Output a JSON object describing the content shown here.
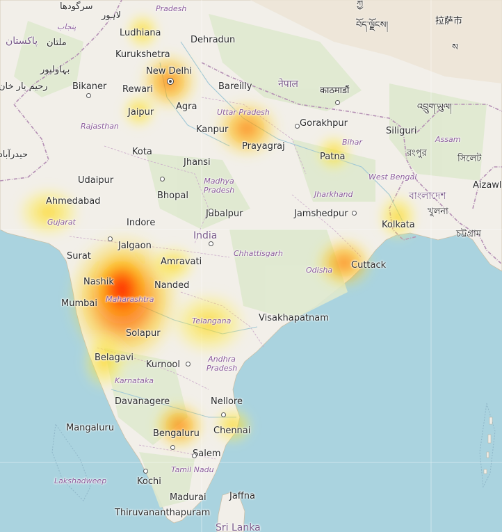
{
  "map": {
    "colors": {
      "sea": "#aad3df",
      "land": "#f2efe9",
      "terrain": "#d8e6c4",
      "border": "#b48fb4",
      "heat_high": "#ff2a00",
      "heat_mid": "#ff9a00",
      "heat_low": "#fff25c"
    },
    "countries": [
      {
        "id": "india",
        "label": "India"
      },
      {
        "id": "pakistan",
        "label": "پاکستان"
      },
      {
        "id": "nepal",
        "label": "नेपाल"
      },
      {
        "id": "bangladesh",
        "label": "বাংলাদেশ"
      },
      {
        "id": "srilanka",
        "label": "Sri Lanka"
      }
    ],
    "regions": [
      {
        "id": "uttar-pradesh",
        "label": "Uttar Pradesh"
      },
      {
        "id": "rajasthan",
        "label": "Rajasthan"
      },
      {
        "id": "madhya-pradesh",
        "label": "Madhya Pradesh"
      },
      {
        "id": "gujarat",
        "label": "Gujarat"
      },
      {
        "id": "maharashtra",
        "label": "Maharashtra"
      },
      {
        "id": "telangana",
        "label": "Telangana"
      },
      {
        "id": "andhra-pradesh",
        "label": "Andhra Pradesh"
      },
      {
        "id": "karnataka",
        "label": "Karnataka"
      },
      {
        "id": "tamil-nadu",
        "label": "Tamil Nadu"
      },
      {
        "id": "chhattisgarh",
        "label": "Chhattisgarh"
      },
      {
        "id": "jharkhand",
        "label": "Jharkhand"
      },
      {
        "id": "bihar",
        "label": "Bihar"
      },
      {
        "id": "west-bengal",
        "label": "West Bengal"
      },
      {
        "id": "odisha",
        "label": "Odisha"
      },
      {
        "id": "assam",
        "label": "Assam"
      },
      {
        "id": "lakshadweep",
        "label": "Lakshadweep"
      },
      {
        "id": "punjab-pk",
        "label": "پنجاب"
      },
      {
        "id": "himachal",
        "label": "Pradesh"
      }
    ],
    "cities": [
      {
        "id": "ludhiana",
        "label": "Ludhiana"
      },
      {
        "id": "dehradun",
        "label": "Dehradun"
      },
      {
        "id": "kurukshetra",
        "label": "Kurukshetra"
      },
      {
        "id": "new-delhi",
        "label": "New Delhi"
      },
      {
        "id": "rewari",
        "label": "Rewari"
      },
      {
        "id": "bareilly",
        "label": "Bareilly"
      },
      {
        "id": "bikaner",
        "label": "Bikaner"
      },
      {
        "id": "jaipur",
        "label": "Jaipur"
      },
      {
        "id": "agra",
        "label": "Agra"
      },
      {
        "id": "kanpur",
        "label": "Kanpur"
      },
      {
        "id": "gorakhpur",
        "label": "Gorakhpur"
      },
      {
        "id": "siliguri",
        "label": "Siliguri"
      },
      {
        "id": "prayagraj",
        "label": "Prayagraj"
      },
      {
        "id": "patna",
        "label": "Patna"
      },
      {
        "id": "kota",
        "label": "Kota"
      },
      {
        "id": "jhansi",
        "label": "Jhansi"
      },
      {
        "id": "udaipur",
        "label": "Udaipur"
      },
      {
        "id": "bhopal",
        "label": "Bhopal"
      },
      {
        "id": "ahmedabad",
        "label": "Ahmedabad"
      },
      {
        "id": "jabalpur",
        "label": "Jabalpur"
      },
      {
        "id": "jamshedpur",
        "label": "Jamshedpur"
      },
      {
        "id": "kolkata",
        "label": "Kolkata"
      },
      {
        "id": "indore",
        "label": "Indore"
      },
      {
        "id": "jalgaon",
        "label": "Jalgaon"
      },
      {
        "id": "amravati",
        "label": "Amravati"
      },
      {
        "id": "surat",
        "label": "Surat"
      },
      {
        "id": "cuttack",
        "label": "Cuttack"
      },
      {
        "id": "nashik",
        "label": "Nashik"
      },
      {
        "id": "nanded",
        "label": "Nanded"
      },
      {
        "id": "mumbai",
        "label": "Mumbai"
      },
      {
        "id": "visakhapatnam",
        "label": "Visakhapatnam"
      },
      {
        "id": "solapur",
        "label": "Solapur"
      },
      {
        "id": "belagavi",
        "label": "Belagavi"
      },
      {
        "id": "kurnool",
        "label": "Kurnool"
      },
      {
        "id": "davanagere",
        "label": "Davanagere"
      },
      {
        "id": "nellore",
        "label": "Nellore"
      },
      {
        "id": "mangaluru",
        "label": "Mangaluru"
      },
      {
        "id": "bengaluru",
        "label": "Bengaluru"
      },
      {
        "id": "chennai",
        "label": "Chennai"
      },
      {
        "id": "salem",
        "label": "Salem"
      },
      {
        "id": "kochi",
        "label": "Kochi"
      },
      {
        "id": "madurai",
        "label": "Madurai"
      },
      {
        "id": "jaffna",
        "label": "Jaffna"
      },
      {
        "id": "thiruvananthapuram",
        "label": "Thiruvananthapuram"
      },
      {
        "id": "aizawl",
        "label": "Aizawl"
      },
      {
        "id": "sylhet",
        "label": "সিলেট"
      },
      {
        "id": "khulna",
        "label": "খুলনা"
      },
      {
        "id": "chattogram",
        "label": "চট্টগ্রাম"
      },
      {
        "id": "rangpur",
        "label": "রংপুর"
      },
      {
        "id": "kathmandu",
        "label": "काठमाडौं"
      },
      {
        "id": "multan",
        "label": "ملتان"
      },
      {
        "id": "bahawalpur",
        "label": "بہاولپور"
      },
      {
        "id": "rahim-yar-khan",
        "label": "رحیم یار خان"
      },
      {
        "id": "sargodha",
        "label": "سرگودھا"
      },
      {
        "id": "lahore",
        "label": "لاہور"
      },
      {
        "id": "hyderabad-pk",
        "label": "حیدرآباد"
      },
      {
        "id": "lhasa",
        "label": "拉萨市"
      },
      {
        "id": "tibet-script",
        "label": "བོད་ལྗོངས།"
      },
      {
        "id": "bhutan",
        "label": "འབྲུག་ཡུལ།"
      },
      {
        "id": "sakya",
        "label": "ས"
      },
      {
        "id": "tibet-script-2",
        "label": "ཀྱི"
      }
    ]
  }
}
